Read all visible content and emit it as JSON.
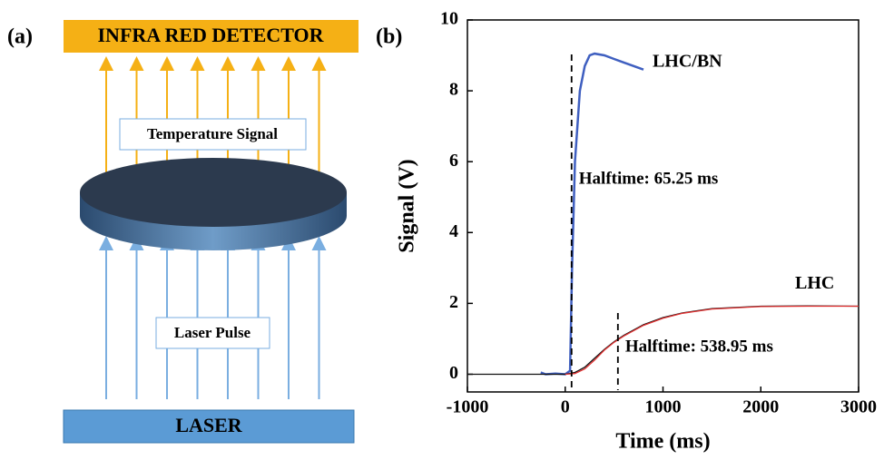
{
  "panel_labels": [
    "(a)",
    "(b)"
  ],
  "diagram": {
    "detector": "INFRA RED DETECTOR",
    "temperature_signal": "Temperature Signal",
    "laser_pulse": "Laser Pulse",
    "laser": "LASER"
  },
  "chart_data": {
    "type": "line",
    "x_label": "Time (ms)",
    "y_label": "Signal (V)",
    "xlim": [
      -1000,
      3000
    ],
    "ylim": [
      -0.5,
      10
    ],
    "xticks": [
      -1000,
      0,
      1000,
      2000,
      3000
    ],
    "yticks": [
      0,
      2,
      4,
      6,
      8,
      10
    ],
    "series": [
      {
        "name": "LHC/BN",
        "color": "#3f5fc0",
        "x": [
          -250,
          -200,
          -100,
          0,
          50,
          70,
          100,
          150,
          200,
          250,
          300,
          400,
          500,
          600,
          700,
          800
        ],
        "values": [
          0.05,
          0,
          0.02,
          0,
          0.1,
          3,
          6,
          8,
          8.7,
          9,
          9.05,
          9,
          8.9,
          8.8,
          8.7,
          8.6
        ]
      },
      {
        "name": "LHC",
        "color": "#111111",
        "x": [
          -1000,
          -500,
          -200,
          0,
          100,
          200,
          300,
          400,
          500,
          600,
          800,
          1000,
          1200,
          1500,
          2000,
          2500,
          3000
        ],
        "values": [
          0,
          0,
          0,
          0,
          0.05,
          0.2,
          0.45,
          0.7,
          0.92,
          1.1,
          1.4,
          1.6,
          1.73,
          1.85,
          1.92,
          1.93,
          1.92
        ]
      },
      {
        "color": "#e03030",
        "x": [
          0,
          100,
          200,
          300,
          400,
          500,
          600,
          800,
          1000,
          1200,
          1500,
          2000,
          2500,
          3000
        ],
        "values": [
          0,
          0.02,
          0.15,
          0.4,
          0.68,
          0.9,
          1.08,
          1.38,
          1.58,
          1.72,
          1.84,
          1.91,
          1.92,
          1.92
        ]
      }
    ],
    "annotations": [
      {
        "value": 65.25,
        "label": "Halftime: 65.25 ms"
      },
      {
        "value": 538.95,
        "label": "Halftime: 538.95 ms"
      }
    ]
  }
}
